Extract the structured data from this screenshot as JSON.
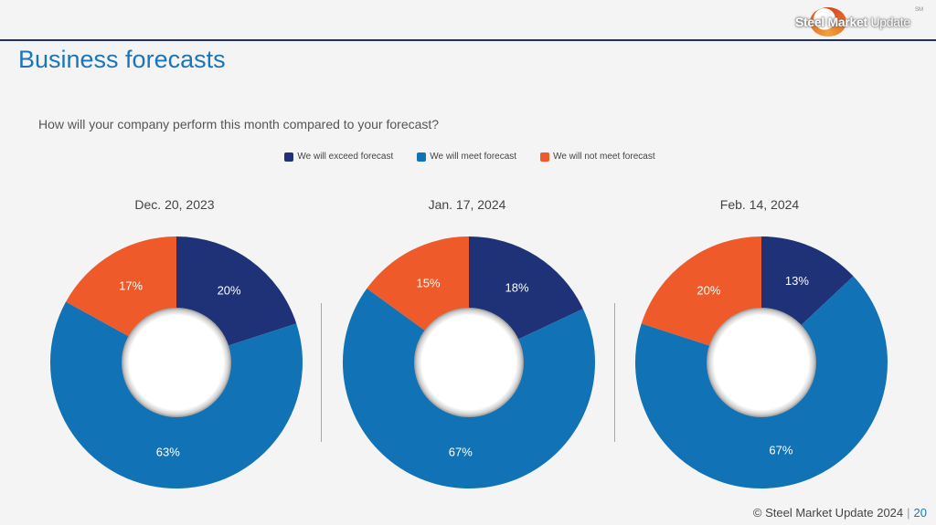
{
  "header": {
    "logo_text_bold": "Steel Market",
    "logo_text_light": " Update",
    "logo_tm": "SM"
  },
  "slide": {
    "title": "Business forecasts",
    "question": "How will your company perform this month compared to your forecast?"
  },
  "legend": [
    {
      "label": "We will exceed forecast",
      "color": "#1f3277"
    },
    {
      "label": "We will meet forecast",
      "color": "#1272b6"
    },
    {
      "label": "We will not meet forecast",
      "color": "#ee5a29"
    }
  ],
  "chart_data": [
    {
      "type": "pie",
      "title": "Dec. 20, 2023",
      "categories": [
        "We will exceed forecast",
        "We will meet forecast",
        "We will not meet forecast"
      ],
      "values": [
        20,
        63,
        17
      ],
      "labels": [
        "20%",
        "63%",
        "17%"
      ]
    },
    {
      "type": "pie",
      "title": "Jan. 17, 2024",
      "categories": [
        "We will exceed forecast",
        "We will meet forecast",
        "We will not meet forecast"
      ],
      "values": [
        18,
        67,
        15
      ],
      "labels": [
        "18%",
        "67%",
        "15%"
      ]
    },
    {
      "type": "pie",
      "title": "Feb. 14, 2024",
      "categories": [
        "We will exceed forecast",
        "We will meet forecast",
        "We will not meet forecast"
      ],
      "values": [
        13,
        67,
        20
      ],
      "labels": [
        "13%",
        "67%",
        "20%"
      ]
    }
  ],
  "footer": {
    "copyright": "© Steel Market Update 2024",
    "separator": "|",
    "page_number": "20"
  }
}
